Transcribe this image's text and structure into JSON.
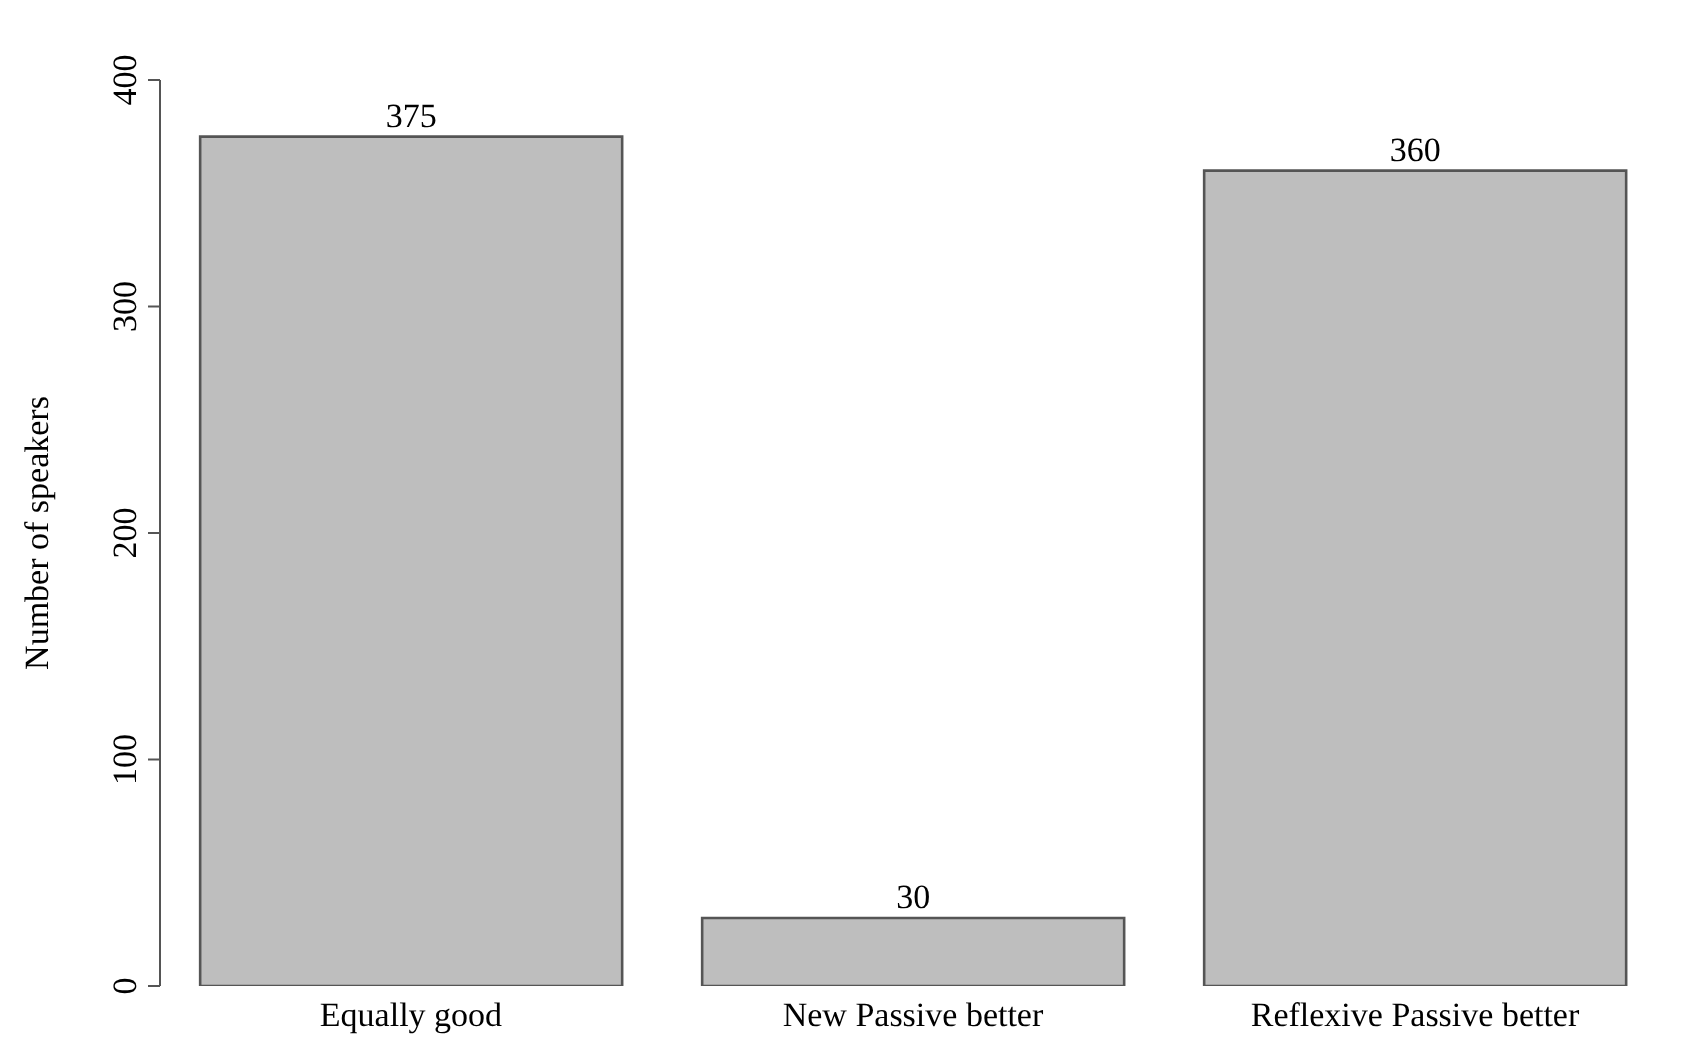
{
  "chart_data": {
    "type": "bar",
    "ylabel": "Number of speakers",
    "categories": [
      "Equally good",
      "New Passive better",
      "Reflexive Passive better"
    ],
    "values": [
      375,
      30,
      360
    ],
    "color": "#bebebe",
    "ylim": [
      0,
      400
    ],
    "yticks": [
      0,
      100,
      200,
      300,
      400
    ],
    "data_labels": true,
    "grid": false,
    "legend": false
  }
}
